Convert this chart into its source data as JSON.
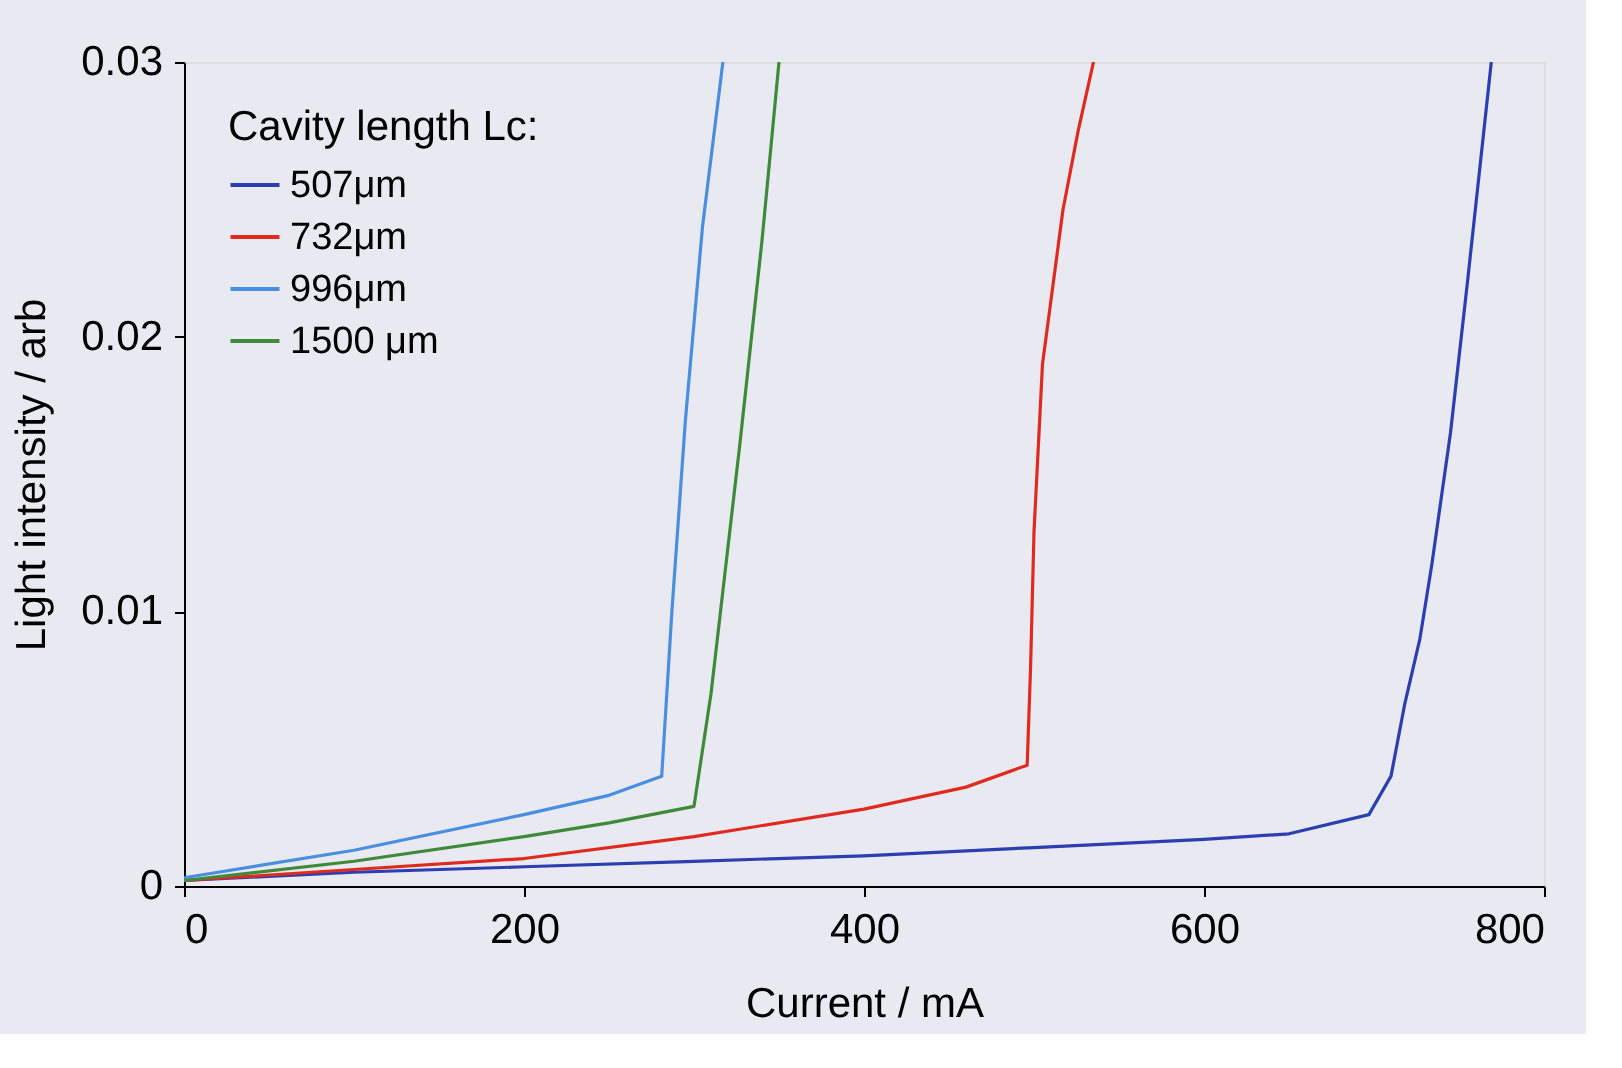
{
  "chart_data": {
    "type": "line",
    "xlabel": "Current /  mA",
    "ylabel": "Light intensity / arb",
    "legend_title": "Cavity length Lc:",
    "legend": "top left",
    "grid": false,
    "marker": "none",
    "line_style": "solid",
    "xlim": [
      0,
      800
    ],
    "xticks": [
      0,
      200,
      400,
      600,
      800
    ],
    "ylim": [
      0,
      0.03
    ],
    "yticks": [
      0,
      0.01,
      0.02,
      0.03
    ],
    "series": [
      {
        "name": "507μm",
        "color": "#2b3fb0",
        "x": [
          0,
          100,
          200,
          300,
          400,
          500,
          600,
          650,
          697,
          710,
          718,
          727,
          734,
          745,
          755,
          769
        ],
        "values": [
          0.0002,
          0.0005,
          0.0007,
          0.0009,
          0.0011,
          0.0014,
          0.0017,
          0.0019,
          0.0026,
          0.004,
          0.0066,
          0.009,
          0.0117,
          0.0165,
          0.022,
          0.03
        ]
      },
      {
        "name": "732μm",
        "color": "#e02a20",
        "x": [
          0,
          100,
          200,
          300,
          400,
          460,
          496,
          498,
          500,
          505,
          517,
          526,
          535
        ],
        "values": [
          0.0002,
          0.0006,
          0.001,
          0.0018,
          0.0028,
          0.0036,
          0.0044,
          0.008,
          0.0129,
          0.019,
          0.0246,
          0.0275,
          0.03
        ]
      },
      {
        "name": "996μm",
        "color": "#4a8ee0",
        "x": [
          0,
          100,
          200,
          250,
          281,
          287,
          295,
          305,
          317
        ],
        "values": [
          0.0003,
          0.0013,
          0.0026,
          0.0033,
          0.004,
          0.01,
          0.017,
          0.024,
          0.03
        ]
      },
      {
        "name": "1500 μm",
        "color": "#3f8a3a",
        "x": [
          0,
          100,
          200,
          250,
          300,
          310,
          327,
          340,
          350
        ],
        "values": [
          0.0002,
          0.0009,
          0.0018,
          0.0023,
          0.0029,
          0.007,
          0.0161,
          0.0235,
          0.03
        ]
      }
    ]
  }
}
